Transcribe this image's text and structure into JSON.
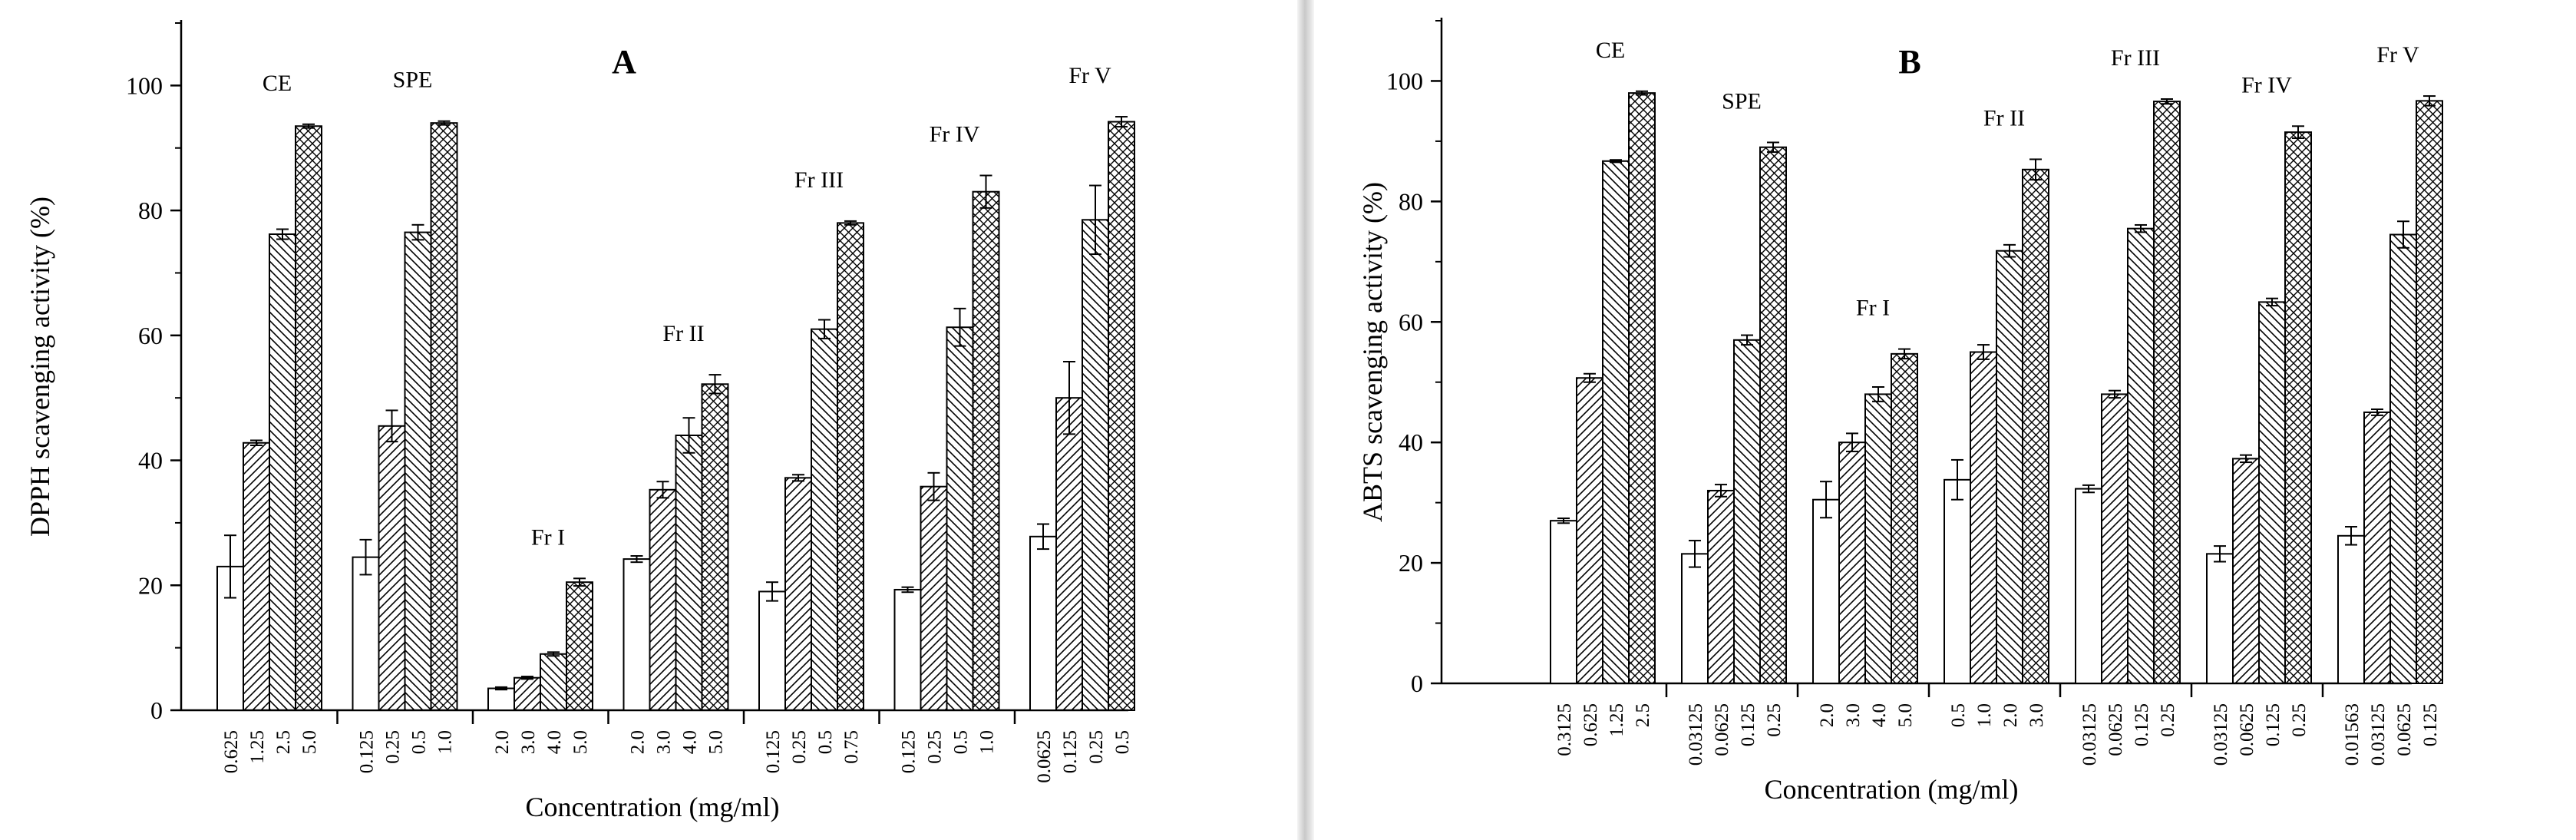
{
  "chart_data": [
    {
      "type": "bar",
      "panel_letter": "A",
      "ylabel": "DPPH scavenging activity (%)",
      "xlabel": "Concentration (mg/ml)",
      "ylim": [
        0,
        110
      ],
      "yticks": [
        0,
        20,
        40,
        60,
        80,
        100
      ],
      "groups": [
        {
          "label": "CE",
          "concentrations": [
            "0.625",
            "1.25",
            "2.5",
            "5.0"
          ],
          "values": [
            23.0,
            42.8,
            76.2,
            93.5
          ],
          "errors": [
            5.0,
            0.4,
            0.8,
            0.3
          ]
        },
        {
          "label": "SPE",
          "concentrations": [
            "0.125",
            "0.25",
            "0.5",
            "1.0"
          ],
          "values": [
            24.5,
            45.5,
            76.5,
            94.0
          ],
          "errors": [
            2.8,
            2.5,
            1.2,
            0.3
          ]
        },
        {
          "label": "Fr I",
          "concentrations": [
            "2.0",
            "3.0",
            "4.0",
            "5.0"
          ],
          "values": [
            3.5,
            5.2,
            9.0,
            20.5
          ],
          "errors": [
            0.2,
            0.2,
            0.3,
            0.6
          ]
        },
        {
          "label": "Fr II",
          "concentrations": [
            "2.0",
            "3.0",
            "4.0",
            "5.0"
          ],
          "values": [
            24.2,
            35.3,
            44.0,
            52.2
          ],
          "errors": [
            0.5,
            1.3,
            2.8,
            1.5
          ]
        },
        {
          "label": "Fr III",
          "concentrations": [
            "0.125",
            "0.25",
            "0.5",
            "0.75"
          ],
          "values": [
            19.0,
            37.2,
            61.0,
            78.0
          ],
          "errors": [
            1.5,
            0.5,
            1.5,
            0.3
          ]
        },
        {
          "label": "Fr IV",
          "concentrations": [
            "0.125",
            "0.25",
            "0.5",
            "1.0"
          ],
          "values": [
            19.3,
            35.8,
            61.3,
            83.0
          ],
          "errors": [
            0.4,
            2.2,
            3.0,
            2.6
          ]
        },
        {
          "label": "Fr V",
          "concentrations": [
            "0.0625",
            "0.125",
            "0.25",
            "0.5"
          ],
          "values": [
            27.8,
            50.0,
            78.5,
            94.2
          ],
          "errors": [
            2.0,
            5.8,
            5.5,
            0.8
          ]
        }
      ]
    },
    {
      "type": "bar",
      "panel_letter": "B",
      "ylabel": "ABTS scavenging activity (%)",
      "xlabel": "Concentration (mg/ml)",
      "ylim": [
        0,
        110
      ],
      "yticks": [
        0,
        20,
        40,
        60,
        80,
        100
      ],
      "groups": [
        {
          "label": "CE",
          "concentrations": [
            "0.3125",
            "0.625",
            "1.25",
            "2.5"
          ],
          "values": [
            27.0,
            50.7,
            86.7,
            98.0
          ],
          "errors": [
            0.4,
            0.7,
            0.2,
            0.3
          ]
        },
        {
          "label": "SPE",
          "concentrations": [
            "0.03125",
            "0.0625",
            "0.125",
            "0.25"
          ],
          "values": [
            21.5,
            32.0,
            57.0,
            89.0
          ],
          "errors": [
            2.2,
            1.0,
            0.8,
            0.8
          ]
        },
        {
          "label": "Fr I",
          "concentrations": [
            "2.0",
            "3.0",
            "4.0",
            "5.0"
          ],
          "values": [
            30.5,
            40.0,
            48.0,
            54.7
          ],
          "errors": [
            3.0,
            1.5,
            1.2,
            0.8
          ]
        },
        {
          "label": "Fr II",
          "concentrations": [
            "0.5",
            "1.0",
            "2.0",
            "3.0"
          ],
          "values": [
            33.8,
            55.0,
            71.8,
            85.3
          ],
          "errors": [
            3.3,
            1.2,
            1.0,
            1.7
          ]
        },
        {
          "label": "Fr III",
          "concentrations": [
            "0.03125",
            "0.0625",
            "0.125",
            "0.25"
          ],
          "values": [
            32.3,
            48.0,
            75.5,
            96.6
          ],
          "errors": [
            0.6,
            0.6,
            0.6,
            0.4
          ]
        },
        {
          "label": "Fr IV",
          "concentrations": [
            "0.03125",
            "0.0625",
            "0.125",
            "0.25"
          ],
          "values": [
            21.5,
            37.3,
            63.3,
            91.5
          ],
          "errors": [
            1.3,
            0.6,
            0.6,
            1.0
          ]
        },
        {
          "label": "Fr V",
          "concentrations": [
            "0.01563",
            "0.03125",
            "0.0625",
            "0.125"
          ],
          "values": [
            24.5,
            45.0,
            74.5,
            96.7
          ],
          "errors": [
            1.5,
            0.5,
            2.2,
            0.8
          ]
        }
      ]
    }
  ]
}
